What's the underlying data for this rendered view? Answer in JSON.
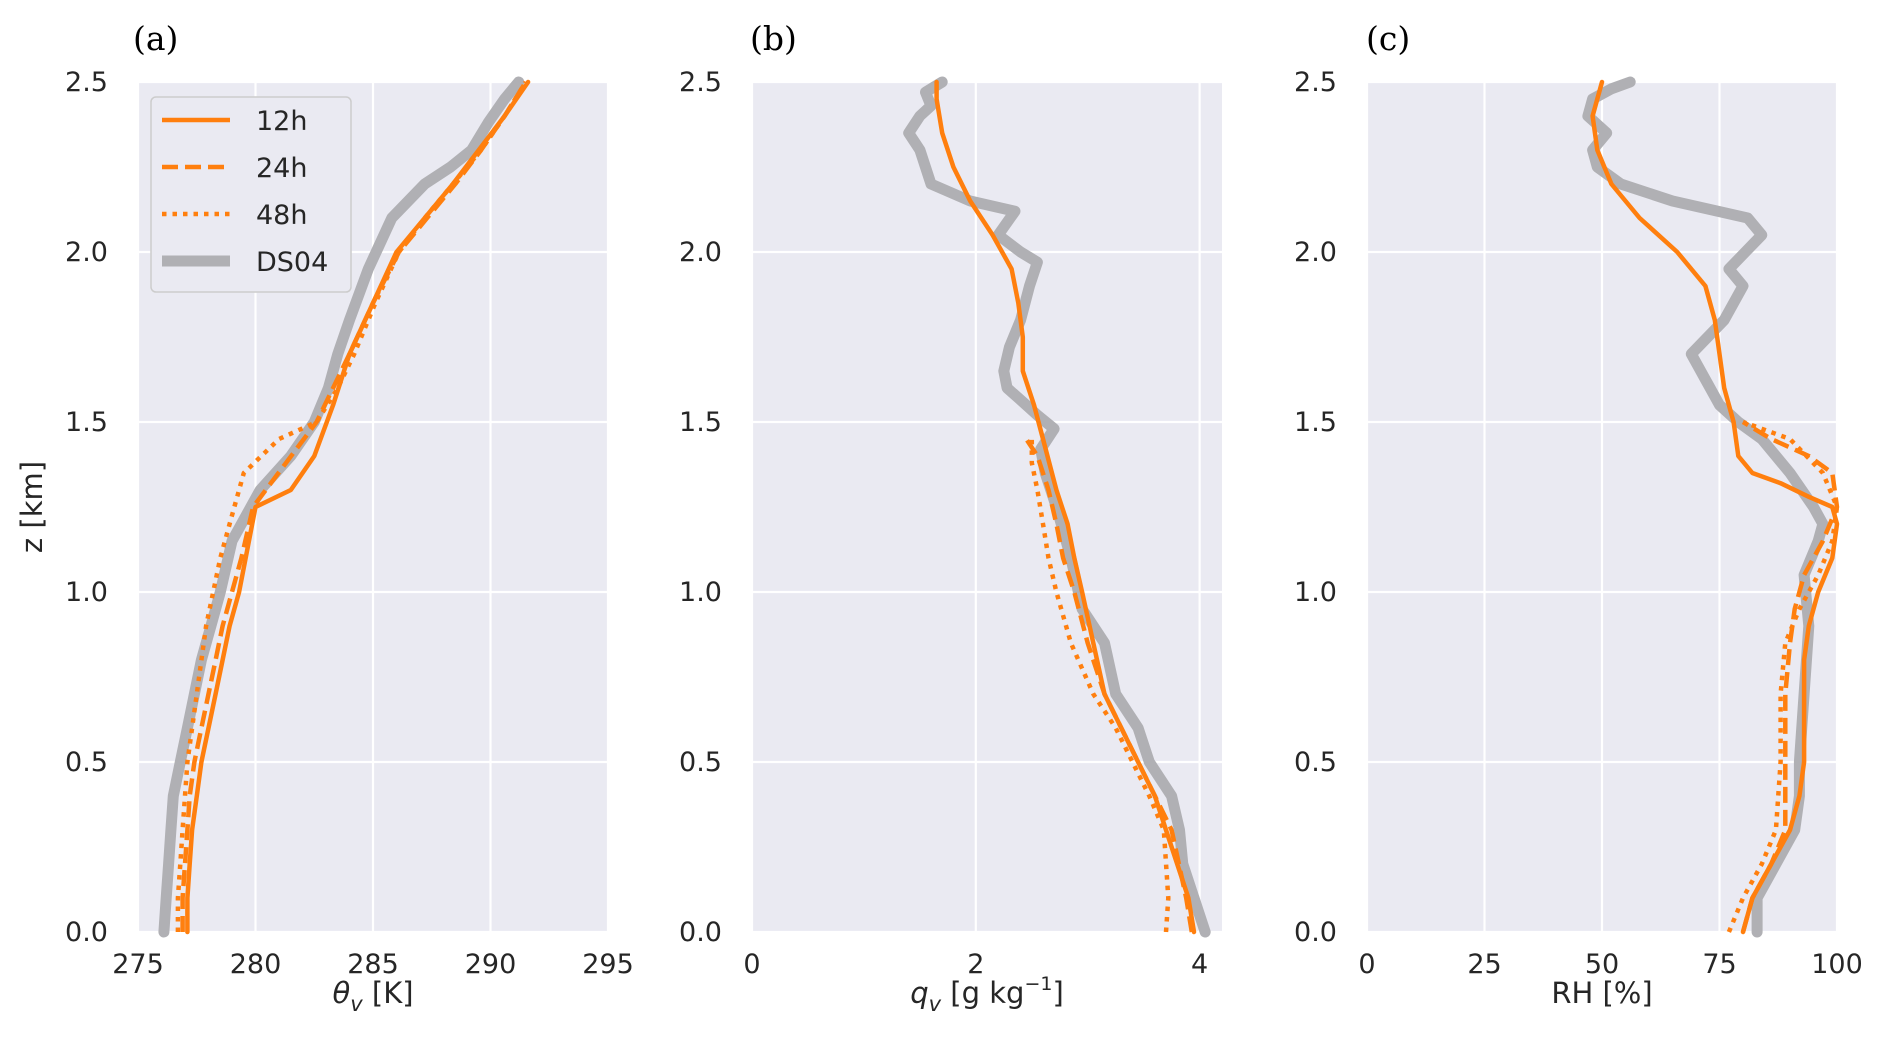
{
  "colors": {
    "model": "#ff7f0e",
    "obs": "#b0b0b4",
    "background": "#eaeaf2",
    "grid": "#ffffff"
  },
  "chart_data": [
    {
      "type": "line",
      "panel_label": "(a)",
      "xlabel": "θv  [K]",
      "xlabel_main": "θ",
      "xlabel_sub": "v",
      "xlabel_rest": "  [K]",
      "ylabel": "z  [km]",
      "xlim": [
        275,
        295
      ],
      "ylim": [
        0,
        2.5
      ],
      "xticks": [
        "275",
        "280",
        "285",
        "290",
        "295"
      ],
      "xtick_values": [
        275,
        280,
        285,
        290,
        295
      ],
      "yticks": [
        "0.0",
        "0.5",
        "1.0",
        "1.5",
        "2.0",
        "2.5"
      ],
      "ytick_values": [
        0,
        0.5,
        1.0,
        1.5,
        2.0,
        2.5
      ],
      "grid": true,
      "legend": {
        "placement": "top-left",
        "entries": [
          "12h",
          "24h",
          "48h",
          "DS04"
        ]
      },
      "series": [
        {
          "name": "DS04",
          "style": "obs",
          "x": [
            276.1,
            276.2,
            276.3,
            276.4,
            276.5,
            276.8,
            277.1,
            277.4,
            277.7,
            278.1,
            278.5,
            279.0,
            280.2,
            281.5,
            282.5,
            283.1,
            283.5,
            284.0,
            284.8,
            285.8,
            287.2,
            288.3,
            289.2,
            289.9,
            290.6,
            291.2
          ],
          "y": [
            0.0,
            0.1,
            0.2,
            0.3,
            0.4,
            0.5,
            0.6,
            0.7,
            0.8,
            0.9,
            1.0,
            1.15,
            1.3,
            1.4,
            1.5,
            1.6,
            1.7,
            1.8,
            1.95,
            2.1,
            2.2,
            2.25,
            2.3,
            2.38,
            2.45,
            2.5
          ]
        },
        {
          "name": "12h",
          "style": "solid",
          "x": [
            277.1,
            277.1,
            277.2,
            277.3,
            277.5,
            277.7,
            278.0,
            278.3,
            278.6,
            278.9,
            279.3,
            280.0,
            281.5,
            282.5,
            283.3,
            284.0,
            285.0,
            286.0,
            287.2,
            288.4,
            289.5,
            290.6,
            291.6
          ],
          "y": [
            0.0,
            0.1,
            0.2,
            0.3,
            0.4,
            0.5,
            0.6,
            0.7,
            0.8,
            0.9,
            1.0,
            1.25,
            1.3,
            1.4,
            1.55,
            1.7,
            1.85,
            2.0,
            2.1,
            2.2,
            2.3,
            2.4,
            2.5
          ]
        },
        {
          "name": "24h",
          "style": "dashed",
          "x": [
            276.9,
            276.9,
            277.0,
            277.1,
            277.2,
            277.4,
            277.7,
            278.0,
            278.3,
            278.6,
            279.0,
            279.4,
            279.9,
            281.3,
            282.6,
            283.3,
            284.0,
            285.0,
            286.1,
            287.3,
            288.5,
            289.6,
            290.6,
            291.5
          ],
          "y": [
            0.0,
            0.1,
            0.2,
            0.3,
            0.4,
            0.5,
            0.6,
            0.7,
            0.8,
            0.9,
            1.0,
            1.1,
            1.25,
            1.38,
            1.5,
            1.6,
            1.7,
            1.85,
            2.0,
            2.1,
            2.2,
            2.3,
            2.4,
            2.5
          ]
        },
        {
          "name": "48h",
          "style": "dotted",
          "x": [
            276.7,
            276.7,
            276.8,
            276.9,
            277.0,
            277.1,
            277.3,
            277.5,
            277.7,
            277.9,
            278.2,
            278.5,
            278.9,
            279.5,
            281.0,
            282.6,
            283.5,
            284.2,
            285.1,
            286.1,
            287.2,
            288.4,
            289.6,
            290.6,
            291.5
          ],
          "y": [
            0.0,
            0.1,
            0.2,
            0.3,
            0.4,
            0.5,
            0.6,
            0.7,
            0.8,
            0.9,
            1.0,
            1.1,
            1.2,
            1.35,
            1.45,
            1.5,
            1.6,
            1.7,
            1.85,
            2.0,
            2.1,
            2.2,
            2.3,
            2.4,
            2.5
          ]
        }
      ]
    },
    {
      "type": "line",
      "panel_label": "(b)",
      "xlabel": "qv  [g kg−1]",
      "xlabel_main": "q",
      "xlabel_sub": "v",
      "xlabel_rest": "  [g kg",
      "xlabel_sup": "−1",
      "xlabel_close": "]",
      "ylabel": "",
      "xlim": [
        0,
        4.2
      ],
      "ylim": [
        0,
        2.5
      ],
      "xticks": [
        "0",
        "2",
        "4"
      ],
      "xtick_values": [
        0,
        2,
        4
      ],
      "yticks": [
        "0.0",
        "0.5",
        "1.0",
        "1.5",
        "2.0",
        "2.5"
      ],
      "ytick_values": [
        0,
        0.5,
        1.0,
        1.5,
        2.0,
        2.5
      ],
      "grid": true,
      "series": [
        {
          "name": "DS04",
          "style": "obs",
          "x": [
            4.05,
            3.95,
            3.85,
            3.82,
            3.75,
            3.55,
            3.45,
            3.25,
            3.15,
            2.95,
            2.85,
            2.72,
            2.62,
            2.58,
            2.7,
            2.55,
            2.45,
            2.28,
            2.25,
            2.3,
            2.4,
            2.48,
            2.55,
            2.4,
            2.2,
            2.35,
            1.95,
            1.6,
            1.5,
            1.4,
            1.5,
            1.6,
            1.55,
            1.7
          ],
          "y": [
            0.0,
            0.1,
            0.2,
            0.3,
            0.4,
            0.5,
            0.6,
            0.7,
            0.85,
            0.95,
            1.1,
            1.25,
            1.35,
            1.42,
            1.48,
            1.52,
            1.55,
            1.6,
            1.65,
            1.72,
            1.8,
            1.9,
            1.97,
            2.0,
            2.05,
            2.12,
            2.15,
            2.2,
            2.3,
            2.35,
            2.4,
            2.43,
            2.47,
            2.5
          ]
        },
        {
          "name": "12h",
          "style": "solid",
          "x": [
            3.95,
            3.9,
            3.8,
            3.7,
            3.6,
            3.45,
            3.3,
            3.15,
            3.05,
            2.95,
            2.88,
            2.82,
            2.72,
            2.6,
            2.52,
            2.42,
            2.42,
            2.38,
            2.32,
            2.15,
            1.95,
            1.8,
            1.7,
            1.65,
            1.65
          ],
          "y": [
            0.0,
            0.1,
            0.2,
            0.3,
            0.4,
            0.5,
            0.6,
            0.7,
            0.85,
            1.0,
            1.1,
            1.2,
            1.3,
            1.45,
            1.55,
            1.65,
            1.75,
            1.85,
            1.95,
            2.05,
            2.15,
            2.25,
            2.35,
            2.45,
            2.5
          ]
        },
        {
          "name": "24h",
          "style": "dashed",
          "x": [
            3.93,
            3.88,
            3.75,
            3.6,
            3.45,
            3.3,
            3.15,
            3.0,
            2.88,
            2.78,
            2.72,
            2.65,
            2.55,
            2.45
          ],
          "y": [
            0.0,
            0.1,
            0.3,
            0.4,
            0.5,
            0.6,
            0.7,
            0.85,
            1.0,
            1.1,
            1.2,
            1.3,
            1.4,
            1.45
          ]
        },
        {
          "name": "48h",
          "style": "dotted",
          "x": [
            3.7,
            3.72,
            3.68,
            3.55,
            3.4,
            3.25,
            3.05,
            2.85,
            2.72,
            2.65,
            2.6,
            2.55,
            2.5,
            2.5
          ],
          "y": [
            0.0,
            0.1,
            0.3,
            0.4,
            0.5,
            0.6,
            0.7,
            0.85,
            1.0,
            1.1,
            1.2,
            1.3,
            1.38,
            1.45
          ]
        }
      ]
    },
    {
      "type": "line",
      "panel_label": "(c)",
      "xlabel": "RH  [%]",
      "ylabel": "",
      "xlim": [
        0,
        100
      ],
      "ylim": [
        0,
        2.5
      ],
      "xticks": [
        "0",
        "25",
        "50",
        "75",
        "100"
      ],
      "xtick_values": [
        0,
        25,
        50,
        75,
        100
      ],
      "yticks": [
        "0.0",
        "0.5",
        "1.0",
        "1.5",
        "2.0",
        "2.5"
      ],
      "ytick_values": [
        0,
        0.5,
        1.0,
        1.5,
        2.0,
        2.5
      ],
      "grid": true,
      "series": [
        {
          "name": "DS04",
          "style": "obs",
          "x": [
            83,
            83,
            87,
            91,
            92,
            92,
            93,
            94,
            93,
            96,
            97,
            95,
            90,
            84,
            79,
            75,
            73,
            71,
            69,
            76,
            80,
            77,
            84,
            81,
            65,
            54,
            49,
            48,
            51,
            47,
            48,
            52,
            56
          ],
          "y": [
            0.0,
            0.1,
            0.2,
            0.3,
            0.4,
            0.5,
            0.7,
            0.9,
            1.05,
            1.15,
            1.2,
            1.25,
            1.35,
            1.45,
            1.5,
            1.55,
            1.6,
            1.65,
            1.7,
            1.8,
            1.9,
            1.95,
            2.05,
            2.1,
            2.15,
            2.2,
            2.25,
            2.3,
            2.35,
            2.4,
            2.45,
            2.48,
            2.5
          ]
        },
        {
          "name": "12h",
          "style": "solid",
          "x": [
            80,
            82,
            86,
            90,
            92,
            93,
            93,
            93,
            93,
            94,
            96,
            99,
            100,
            99,
            94,
            88,
            82,
            79,
            78,
            76,
            75,
            74,
            72,
            66,
            58,
            52,
            49,
            48,
            49,
            50
          ],
          "y": [
            0.0,
            0.1,
            0.2,
            0.3,
            0.4,
            0.5,
            0.6,
            0.7,
            0.8,
            0.9,
            1.0,
            1.1,
            1.2,
            1.25,
            1.28,
            1.32,
            1.35,
            1.4,
            1.5,
            1.6,
            1.7,
            1.8,
            1.9,
            2.0,
            2.1,
            2.2,
            2.3,
            2.4,
            2.45,
            2.5
          ]
        },
        {
          "name": "24h",
          "style": "dashed",
          "x": [
            80,
            82,
            86,
            89,
            89,
            89,
            90,
            91,
            93,
            97,
            100,
            99,
            94,
            86,
            80
          ],
          "y": [
            0.0,
            0.1,
            0.2,
            0.3,
            0.5,
            0.7,
            0.85,
            0.95,
            1.05,
            1.15,
            1.25,
            1.35,
            1.4,
            1.45,
            1.5
          ]
        },
        {
          "name": "48h",
          "style": "dotted",
          "x": [
            77,
            80,
            84,
            87,
            88,
            88,
            89,
            92,
            96,
            99,
            100,
            97,
            90,
            80
          ],
          "y": [
            0.0,
            0.1,
            0.2,
            0.3,
            0.5,
            0.7,
            0.85,
            0.95,
            1.05,
            1.15,
            1.25,
            1.35,
            1.45,
            1.5
          ]
        }
      ]
    }
  ]
}
